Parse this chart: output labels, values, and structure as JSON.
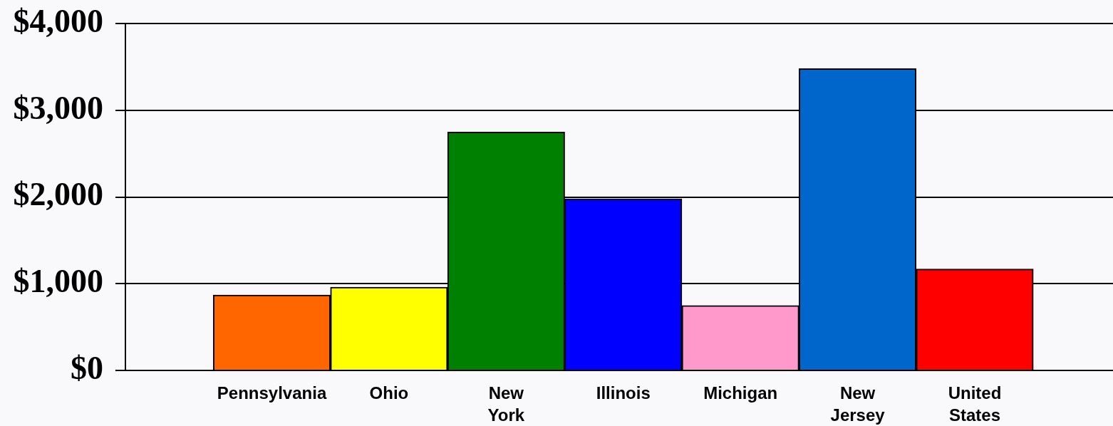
{
  "chart_data": {
    "type": "bar",
    "categories": [
      "Pennsylvania",
      "Ohio",
      "New York",
      "Illinois",
      "Michigan",
      "New Jersey",
      "United States"
    ],
    "values": [
      870,
      960,
      2750,
      1980,
      750,
      3480,
      1170
    ],
    "colors": [
      "#ff6600",
      "#ffff00",
      "#008000",
      "#0000ff",
      "#ff99cc",
      "#0066cc",
      "#ff0000"
    ],
    "ylim": [
      0,
      4000
    ],
    "yticks": [
      {
        "value": 0,
        "label": "$0"
      },
      {
        "value": 1000,
        "label": "$1,000"
      },
      {
        "value": 2000,
        "label": "$2,000"
      },
      {
        "value": 3000,
        "label": "$3,000"
      },
      {
        "value": 4000,
        "label": "$4,000"
      }
    ],
    "grid": "y"
  }
}
